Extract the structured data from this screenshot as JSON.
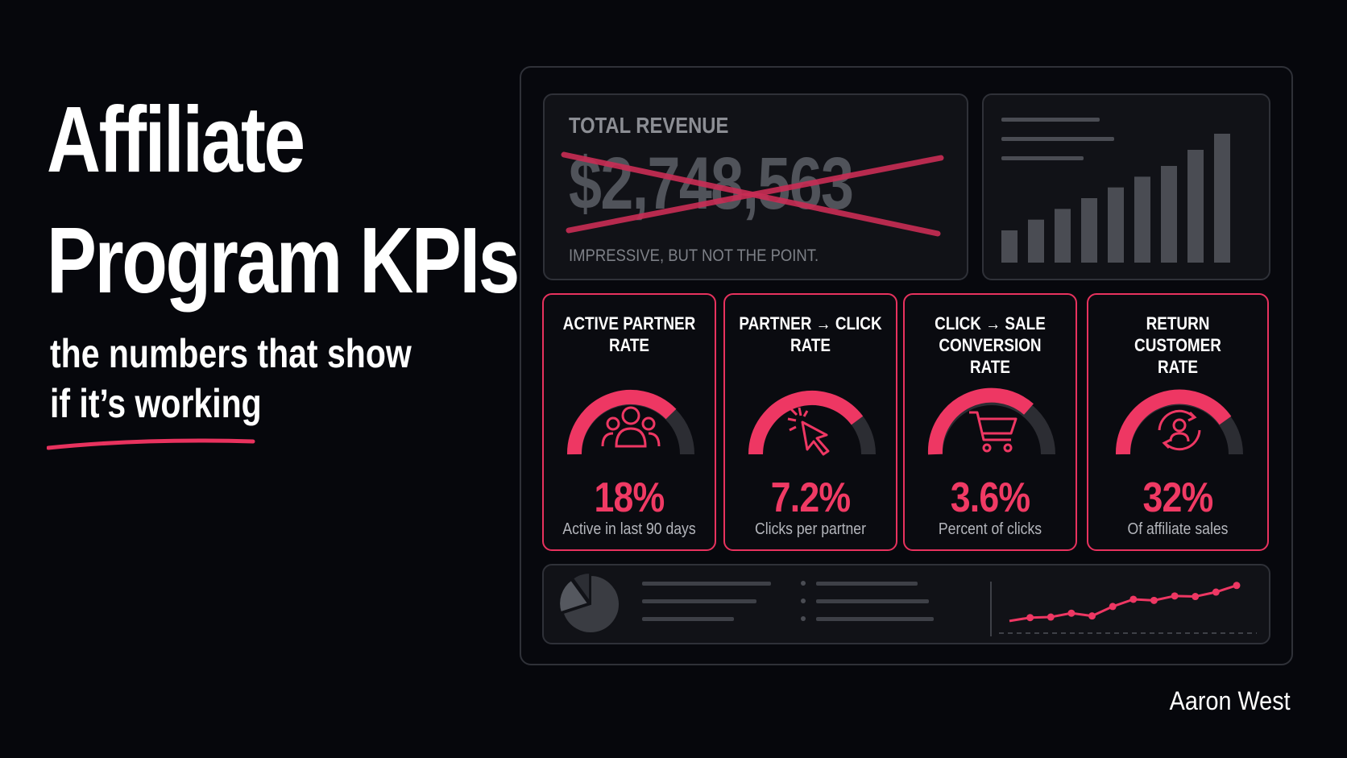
{
  "headline": {
    "line1": "Affiliate",
    "line2": "Program KPIs"
  },
  "subtitle": {
    "line1": "the numbers that show",
    "line2": "if it’s working"
  },
  "author": "Aaron West",
  "colors": {
    "accent": "#e8325e",
    "background": "#06070c",
    "panel": "#111217",
    "muted": "#50535a"
  },
  "revenue": {
    "label": "TOTAL REVENUE",
    "value": "$2,748,563",
    "note": "IMPRESSIVE, BUT NOT THE POINT.",
    "struck_out": true
  },
  "kpis": [
    {
      "title": "ACTIVE PARTNER\nRATE",
      "value": "18%",
      "caption": "Active in last 90 days",
      "icon": "people-icon"
    },
    {
      "title": "PARTNER → CLICK\nRATE",
      "value": "7.2%",
      "caption": "Clicks per partner",
      "icon": "cursor-click-icon"
    },
    {
      "title": "CLICK → SALE\nCONVERSION RATE",
      "value": "3.6%",
      "caption": "Percent of clicks",
      "icon": "shopping-cart-icon"
    },
    {
      "title": "RETURN CUSTOMER\nRATE",
      "value": "32%",
      "caption": "Of affiliate sales",
      "icon": "returning-user-icon"
    }
  ],
  "chart_data": [
    {
      "type": "bar",
      "values": [
        3,
        4,
        5,
        6,
        7,
        8,
        9,
        10.5,
        12
      ]
    },
    {
      "type": "pie",
      "values": [
        70,
        20,
        10
      ]
    },
    {
      "type": "line",
      "values": [
        2.2,
        2.8,
        2.9,
        3.6,
        3.1,
        4.8,
        6.1,
        5.9,
        6.7,
        6.6,
        7.4,
        8.6
      ]
    }
  ]
}
